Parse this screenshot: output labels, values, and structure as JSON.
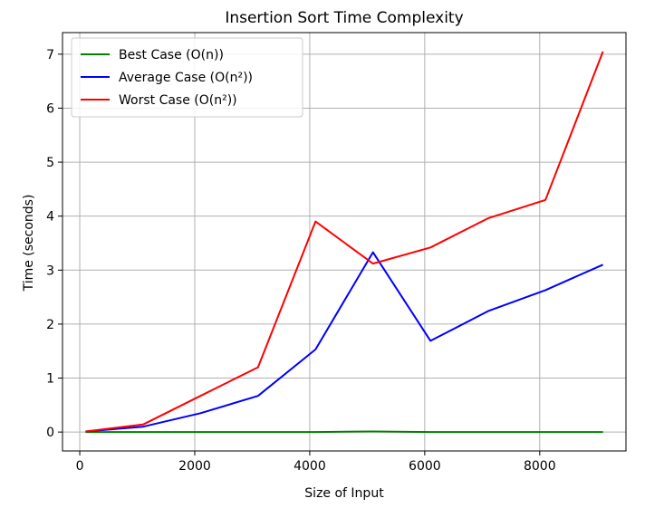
{
  "chart_data": {
    "type": "line",
    "title": "Insertion Sort Time Complexity",
    "xlabel": "Size of Input",
    "ylabel": "Time (seconds)",
    "xlim": [
      -300,
      9500
    ],
    "ylim": [
      -0.35,
      7.4
    ],
    "xticks": [
      0,
      2000,
      4000,
      6000,
      8000
    ],
    "yticks": [
      0,
      1,
      2,
      3,
      4,
      5,
      6,
      7
    ],
    "grid": true,
    "legend": "top-left",
    "x": [
      100,
      1100,
      2100,
      3100,
      4100,
      5100,
      6100,
      7100,
      8100,
      9100
    ],
    "series": [
      {
        "name": "Best Case (O(n))",
        "color": "#008000",
        "values": [
          0.0,
          0.0,
          0.0,
          0.0,
          0.0,
          0.01,
          0.0,
          0.0,
          0.0,
          0.0
        ]
      },
      {
        "name": "Average Case (O(n²))",
        "color": "#0000ff",
        "values": [
          0.01,
          0.1,
          0.35,
          0.67,
          1.53,
          3.33,
          1.69,
          2.24,
          2.63,
          3.1
        ]
      },
      {
        "name": "Worst Case (O(n²))",
        "color": "#ff0000",
        "values": [
          0.01,
          0.14,
          0.67,
          1.2,
          3.9,
          3.12,
          3.42,
          3.96,
          4.3,
          7.05
        ]
      }
    ]
  }
}
